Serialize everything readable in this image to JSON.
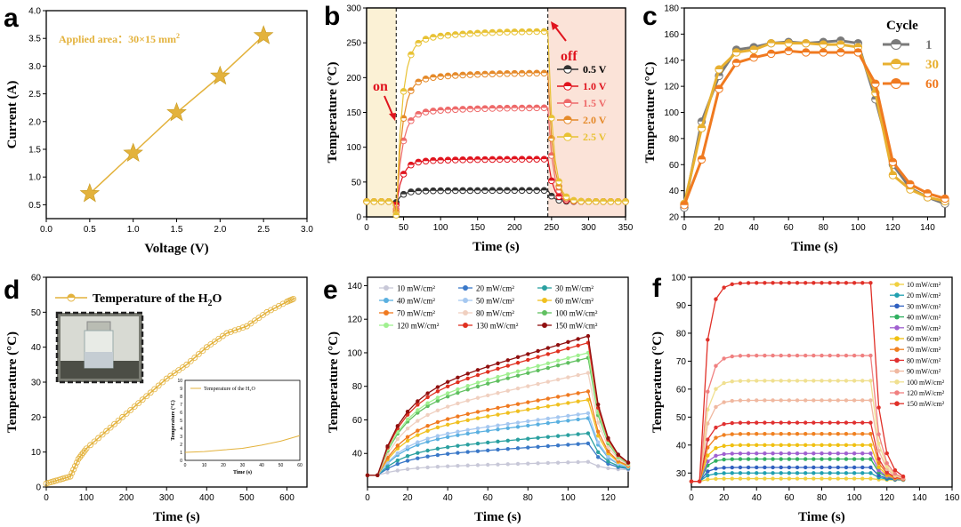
{
  "chart_data": [
    {
      "panel": "a",
      "type": "line",
      "annotation": "Applied area：30×15 mm",
      "annotation_sup": "2",
      "xlabel": "Voltage (V)",
      "ylabel": "Current (A)",
      "xlim": [
        0.0,
        3.0
      ],
      "ylim": [
        0.25,
        4.0
      ],
      "xticks": [
        0.0,
        0.5,
        1.0,
        1.5,
        2.0,
        2.5,
        3.0
      ],
      "yticks": [
        0.5,
        1.0,
        1.5,
        2.0,
        2.5,
        3.0,
        3.5,
        4.0
      ],
      "color": "#e3b23c",
      "x": [
        0.5,
        1.0,
        1.5,
        2.0,
        2.5
      ],
      "y": [
        0.7,
        1.43,
        2.16,
        2.82,
        3.55
      ]
    },
    {
      "panel": "b",
      "type": "line",
      "xlabel": "Time (s)",
      "ylabel": "Temperature (°C)",
      "xlim": [
        0,
        350
      ],
      "ylim": [
        0,
        300
      ],
      "xticks": [
        0,
        50,
        100,
        150,
        200,
        250,
        300,
        350
      ],
      "yticks": [
        0,
        50,
        100,
        150,
        200,
        250,
        300
      ],
      "annotations": [
        "on",
        "off"
      ],
      "on_time": 40,
      "off_time": 245,
      "series": [
        {
          "name": "0.5 V",
          "color": "#333333",
          "peak": 38
        },
        {
          "name": "1.0 V",
          "color": "#e0141e",
          "peak": 83
        },
        {
          "name": "1.5 V",
          "color": "#ee6a6a",
          "peak": 157
        },
        {
          "name": "2.0 V",
          "color": "#e58a2a",
          "peak": 207
        },
        {
          "name": "2.5 V",
          "color": "#e8c234",
          "peak": 267
        }
      ]
    },
    {
      "panel": "c",
      "type": "line",
      "xlabel": "Time (s)",
      "ylabel": "Temperature (°C)",
      "xlim": [
        0,
        150
      ],
      "ylim": [
        20,
        180
      ],
      "xticks": [
        0,
        20,
        40,
        60,
        80,
        100,
        120,
        140
      ],
      "yticks": [
        20,
        40,
        60,
        80,
        100,
        120,
        140,
        160,
        180
      ],
      "legend_title": "Cycle",
      "series": [
        {
          "name": "1",
          "color": "#7a7a7a",
          "x": [
            0,
            10,
            20,
            30,
            40,
            50,
            60,
            70,
            80,
            90,
            100,
            110,
            120,
            130,
            140,
            150
          ],
          "y": [
            27,
            93,
            128,
            148,
            150,
            153,
            154,
            153,
            154,
            155,
            153,
            110,
            60,
            42,
            35,
            30
          ]
        },
        {
          "name": "30",
          "color": "#e8b030",
          "x": [
            0,
            10,
            20,
            30,
            40,
            50,
            60,
            70,
            80,
            90,
            100,
            110,
            120,
            130,
            140,
            150
          ],
          "y": [
            30,
            88,
            133,
            146,
            148,
            153,
            153,
            153,
            152,
            152,
            150,
            115,
            52,
            41,
            35,
            32
          ]
        },
        {
          "name": "60",
          "color": "#f07a20",
          "x": [
            0,
            10,
            20,
            30,
            40,
            50,
            60,
            70,
            80,
            90,
            100,
            110,
            120,
            130,
            140,
            150
          ],
          "y": [
            29,
            64,
            118,
            138,
            142,
            145,
            147,
            146,
            146,
            146,
            146,
            122,
            62,
            45,
            38,
            34
          ]
        }
      ]
    },
    {
      "panel": "d",
      "type": "line",
      "xlabel": "Time (s)",
      "ylabel": "Temperature (°C)",
      "xlim": [
        0,
        650
      ],
      "ylim": [
        0,
        60
      ],
      "xticks": [
        0,
        100,
        200,
        300,
        400,
        500,
        600
      ],
      "yticks": [
        0,
        10,
        20,
        30,
        40,
        50,
        60
      ],
      "legend": "Temperature of the H",
      "legend_sub": "2",
      "legend_tail": "O",
      "inset_legend": "Temperature of the H₂O",
      "inset_xlabel": "Time (s)",
      "inset_ylabel": "Temperature (°C)",
      "color": "#e3b23c",
      "x": [
        0,
        30,
        60,
        80,
        100,
        150,
        200,
        250,
        300,
        350,
        400,
        450,
        500,
        550,
        600,
        620
      ],
      "y": [
        1,
        2,
        3,
        8,
        11,
        16,
        21,
        26,
        31,
        35,
        40,
        44,
        46,
        50,
        53,
        54
      ]
    },
    {
      "panel": "e",
      "type": "line",
      "xlabel": "Time (s)",
      "ylabel": "Temperature (°C)",
      "xlim": [
        0,
        130
      ],
      "ylim": [
        20,
        145
      ],
      "xticks": [
        0,
        20,
        40,
        60,
        80,
        100,
        120
      ],
      "yticks": [
        40,
        60,
        80,
        100,
        120,
        140
      ],
      "series": [
        {
          "name": "10 mW/cm²",
          "color": "#c8c8d8",
          "peak": 35
        },
        {
          "name": "20 mW/cm²",
          "color": "#3a78c8",
          "peak": 46
        },
        {
          "name": "30 mW/cm²",
          "color": "#2aa0a0",
          "peak": 52
        },
        {
          "name": "40 mW/cm²",
          "color": "#5ab0e0",
          "peak": 61
        },
        {
          "name": "50 mW/cm²",
          "color": "#a6c8f0",
          "peak": 64
        },
        {
          "name": "60 mW/cm²",
          "color": "#f0c020",
          "peak": 72
        },
        {
          "name": "70 mW/cm²",
          "color": "#f07a20",
          "peak": 77
        },
        {
          "name": "80 mW/cm²",
          "color": "#f0d0c0",
          "peak": 88
        },
        {
          "name": "100 mW/cm²",
          "color": "#60c060",
          "peak": 97
        },
        {
          "name": "120 mW/cm²",
          "color": "#a0f090",
          "peak": 100
        },
        {
          "name": "130 mW/cm²",
          "color": "#e03020",
          "peak": 106
        },
        {
          "name": "150 mW/cm²",
          "color": "#901010",
          "peak": 110
        }
      ]
    },
    {
      "panel": "f",
      "type": "line",
      "xlabel": "Time (s)",
      "ylabel": "Temperature (°C)",
      "xlim": [
        0,
        160
      ],
      "ylim": [
        25,
        100
      ],
      "xticks": [
        0,
        20,
        40,
        60,
        80,
        100,
        120,
        140,
        160
      ],
      "yticks": [
        30,
        40,
        50,
        60,
        70,
        80,
        90,
        100
      ],
      "series": [
        {
          "name": "10 mW/cm²",
          "color": "#f0d040",
          "plateau": 28
        },
        {
          "name": "20 mW/cm²",
          "color": "#20a0b0",
          "plateau": 30
        },
        {
          "name": "30 mW/cm²",
          "color": "#3060c0",
          "plateau": 32
        },
        {
          "name": "40 mW/cm²",
          "color": "#30b060",
          "plateau": 35
        },
        {
          "name": "50 mW/cm²",
          "color": "#a060d0",
          "plateau": 37
        },
        {
          "name": "60 mW/cm²",
          "color": "#f0c010",
          "plateau": 40
        },
        {
          "name": "70 mW/cm²",
          "color": "#f08020",
          "plateau": 44
        },
        {
          "name": "80 mW/cm²",
          "color": "#e03030",
          "plateau": 48
        },
        {
          "name": "90 mW/cm²",
          "color": "#f0b8a0",
          "plateau": 56
        },
        {
          "name": "100 mW/cm²",
          "color": "#f0e090",
          "plateau": 63
        },
        {
          "name": "120 mW/cm²",
          "color": "#f08080",
          "plateau": 72
        },
        {
          "name": "150 mW/cm²",
          "color": "#e03028",
          "plateau": 98
        }
      ]
    }
  ]
}
